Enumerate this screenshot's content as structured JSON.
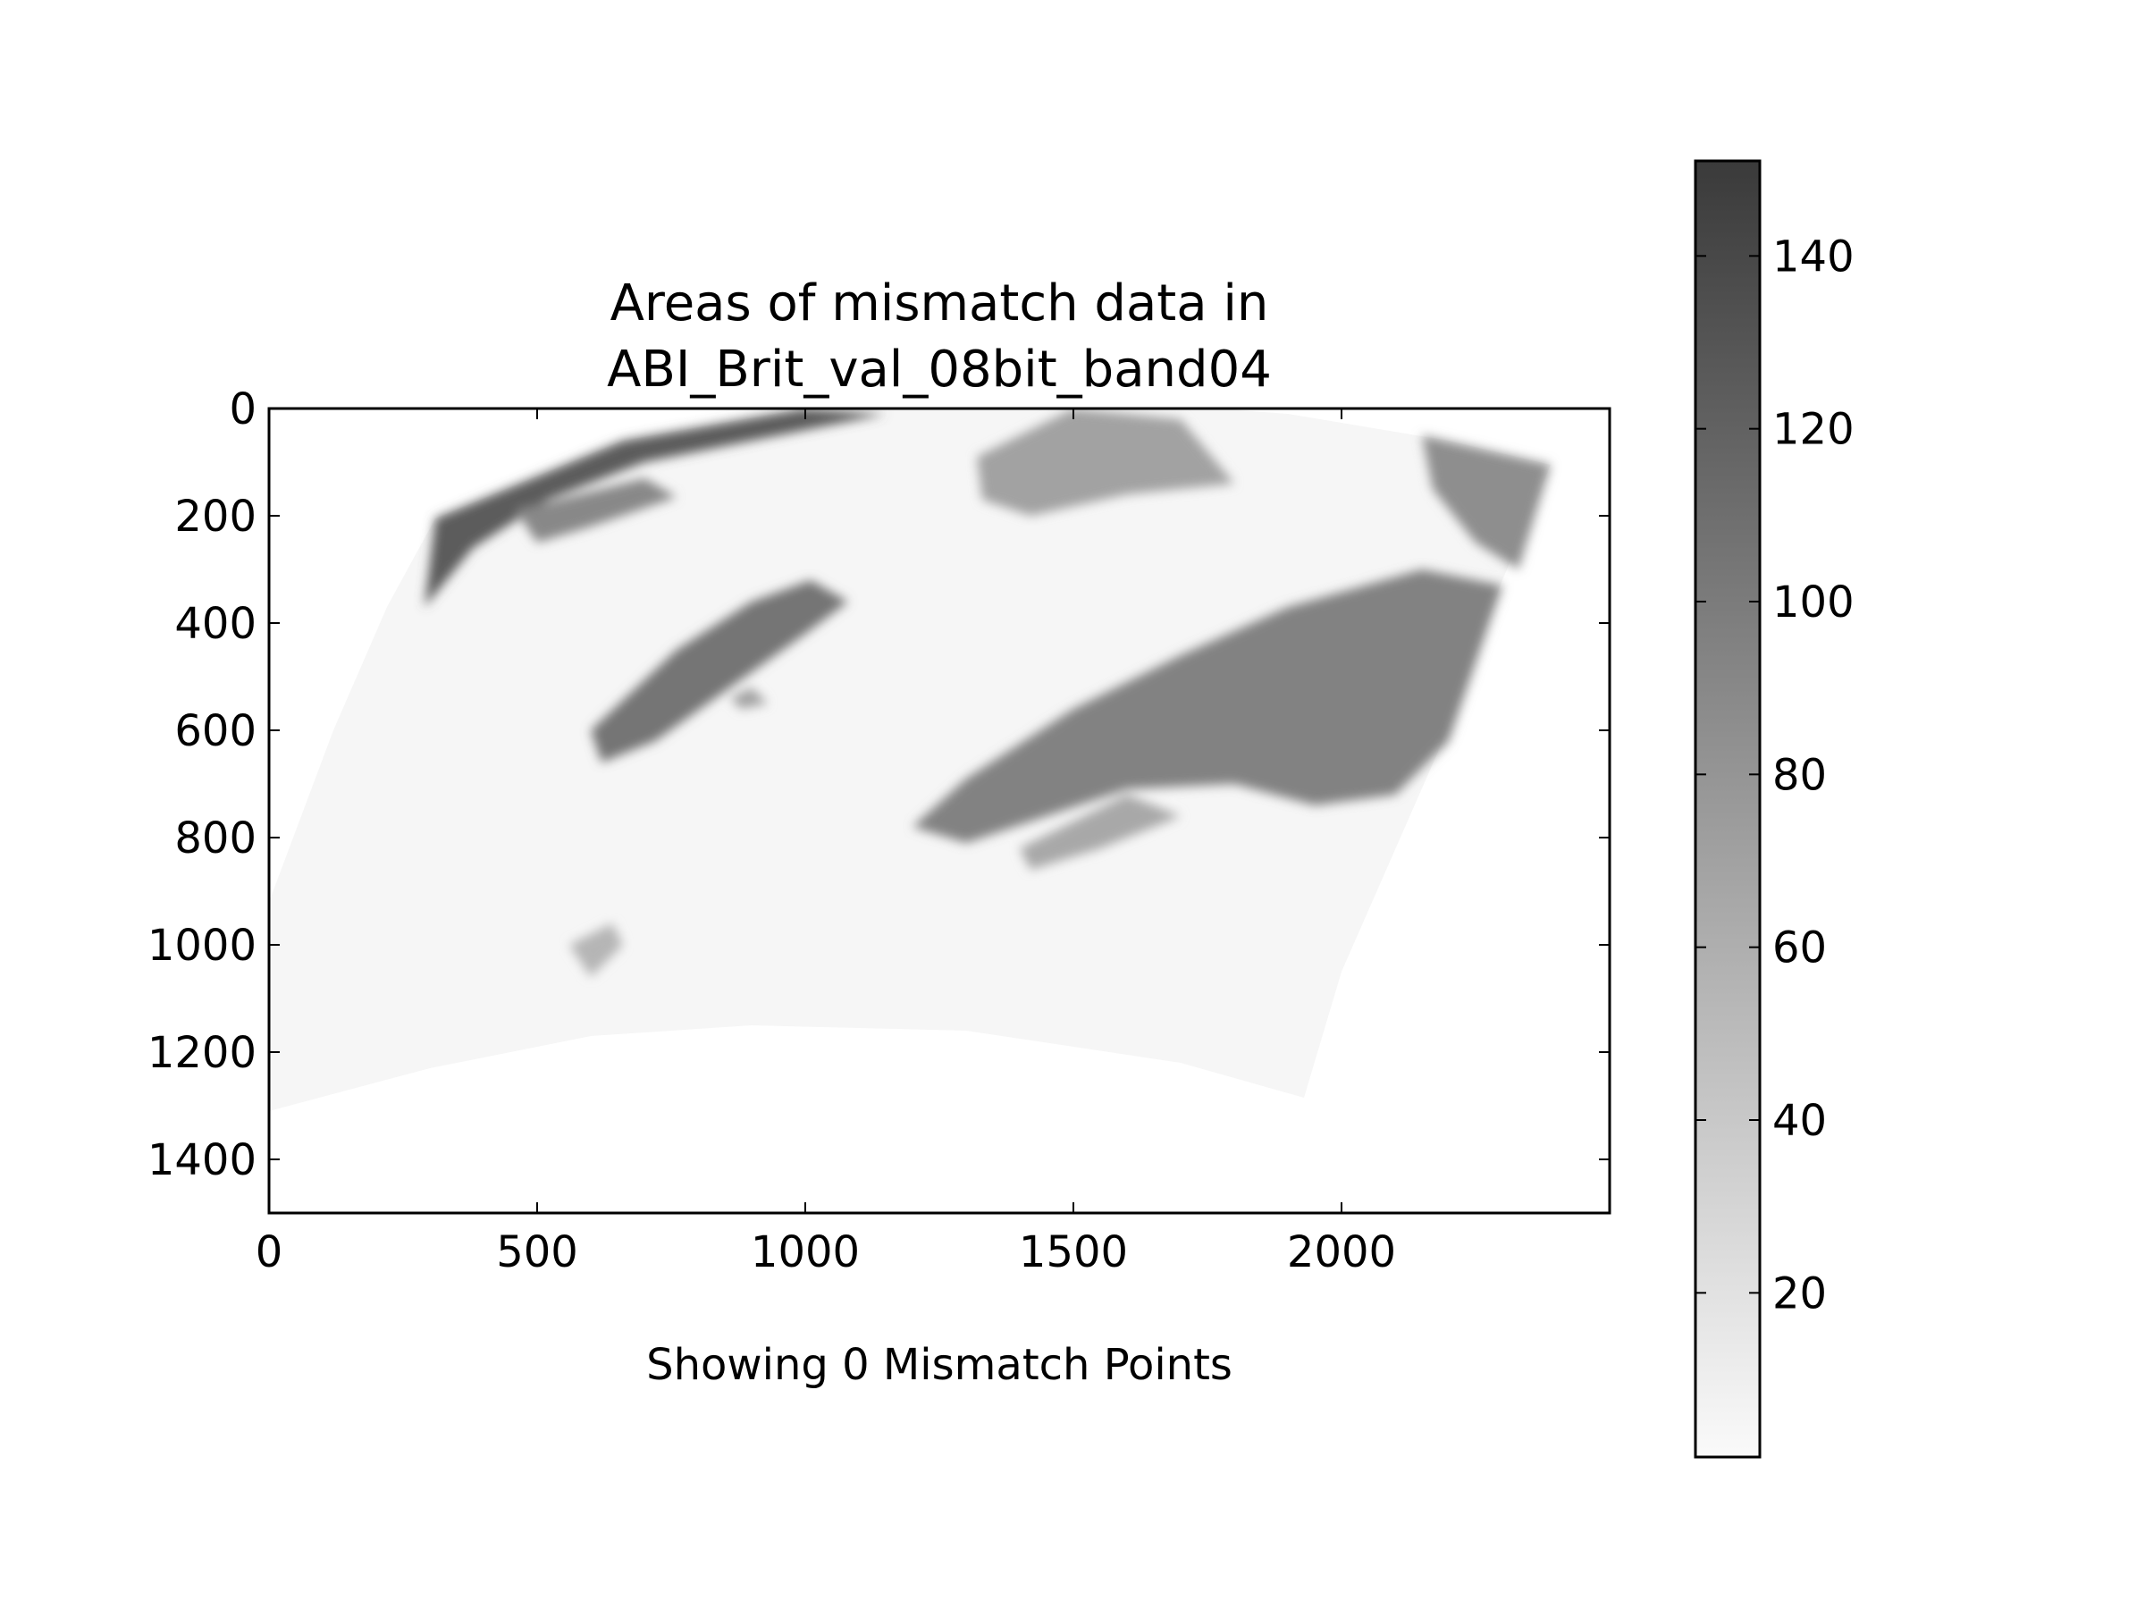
{
  "chart_data": {
    "type": "heatmap",
    "title_lines": [
      "Areas of mismatch data in",
      "ABI_Brit_val_08bit_band04"
    ],
    "xlabel": "Showing 0 Mismatch Points",
    "ylabel": "",
    "xlim": [
      0,
      2500
    ],
    "ylim": [
      1500,
      0
    ],
    "y_inverted": true,
    "x_ticks": [
      0,
      500,
      1000,
      1500,
      2000
    ],
    "y_ticks": [
      0,
      200,
      400,
      600,
      800,
      1000,
      1200,
      1400
    ],
    "colorbar": {
      "range": [
        1,
        151
      ],
      "ticks": [
        20,
        40,
        60,
        80,
        100,
        120,
        140
      ],
      "colormap": "greys",
      "low_color": "#fafafa",
      "high_color": "#3a3a3a"
    },
    "image_extent_outline": [
      [
        310,
        205
      ],
      [
        660,
        60
      ],
      [
        1000,
        0
      ],
      [
        1500,
        -20
      ],
      [
        1900,
        10
      ],
      [
        2200,
        60
      ],
      [
        2390,
        105
      ],
      [
        2300,
        320
      ],
      [
        2180,
        640
      ],
      [
        2000,
        1050
      ],
      [
        1930,
        1285
      ],
      [
        1700,
        1220
      ],
      [
        1300,
        1160
      ],
      [
        900,
        1150
      ],
      [
        600,
        1170
      ],
      [
        300,
        1230
      ],
      [
        0,
        1310
      ],
      [
        0,
        920
      ],
      [
        120,
        600
      ],
      [
        220,
        370
      ]
    ],
    "cloud_regions": [
      {
        "name": "northern-limb",
        "level": 125,
        "outline": [
          [
            310,
            205
          ],
          [
            660,
            60
          ],
          [
            1000,
            0
          ],
          [
            1150,
            10
          ],
          [
            900,
            60
          ],
          [
            700,
            100
          ],
          [
            520,
            170
          ],
          [
            380,
            260
          ],
          [
            290,
            370
          ]
        ]
      },
      {
        "name": "upper-left-cloud",
        "level": 90,
        "outline": [
          [
            460,
            190
          ],
          [
            700,
            130
          ],
          [
            760,
            165
          ],
          [
            600,
            220
          ],
          [
            500,
            250
          ]
        ]
      },
      {
        "name": "top-center-cloud",
        "level": 70,
        "outline": [
          [
            1320,
            90
          ],
          [
            1500,
            0
          ],
          [
            1700,
            20
          ],
          [
            1800,
            140
          ],
          [
            1600,
            160
          ],
          [
            1420,
            200
          ],
          [
            1330,
            170
          ]
        ]
      },
      {
        "name": "top-right-arc",
        "level": 85,
        "outline": [
          [
            2150,
            50
          ],
          [
            2390,
            105
          ],
          [
            2330,
            300
          ],
          [
            2250,
            250
          ],
          [
            2170,
            150
          ]
        ]
      },
      {
        "name": "central-band",
        "level": 105,
        "outline": [
          [
            600,
            600
          ],
          [
            760,
            450
          ],
          [
            900,
            360
          ],
          [
            1010,
            320
          ],
          [
            1080,
            360
          ],
          [
            1000,
            420
          ],
          [
            860,
            520
          ],
          [
            720,
            620
          ],
          [
            620,
            660
          ]
        ]
      },
      {
        "name": "eastern-mass",
        "level": 95,
        "outline": [
          [
            1300,
            690
          ],
          [
            1500,
            560
          ],
          [
            1700,
            460
          ],
          [
            1900,
            370
          ],
          [
            2150,
            300
          ],
          [
            2300,
            330
          ],
          [
            2200,
            620
          ],
          [
            2100,
            720
          ],
          [
            1950,
            740
          ],
          [
            1800,
            700
          ],
          [
            1600,
            710
          ],
          [
            1450,
            760
          ],
          [
            1300,
            810
          ],
          [
            1200,
            780
          ]
        ]
      },
      {
        "name": "streak-low",
        "level": 65,
        "outline": [
          [
            1400,
            820
          ],
          [
            1600,
            720
          ],
          [
            1700,
            760
          ],
          [
            1550,
            820
          ],
          [
            1420,
            860
          ]
        ]
      },
      {
        "name": "small-cloud-left",
        "level": 55,
        "outline": [
          [
            560,
            1000
          ],
          [
            640,
            960
          ],
          [
            660,
            1000
          ],
          [
            600,
            1060
          ]
        ]
      },
      {
        "name": "small-cloud-center",
        "level": 70,
        "outline": [
          [
            860,
            540
          ],
          [
            900,
            520
          ],
          [
            930,
            550
          ],
          [
            880,
            560
          ]
        ]
      }
    ]
  }
}
